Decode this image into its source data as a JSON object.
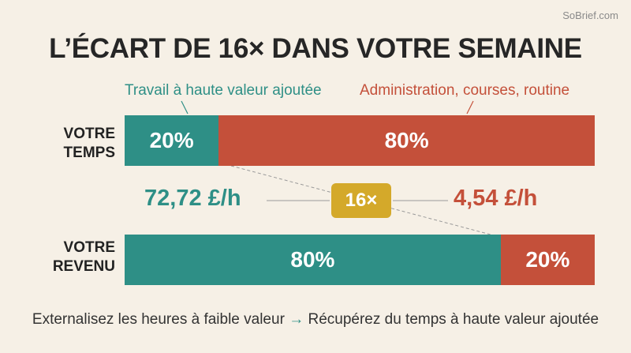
{
  "watermark": "SoBrief.com",
  "chart_data": {
    "type": "bar",
    "title": "L’ÉCART DE 16× DANS VOTRE SEMAINE",
    "legend": [
      {
        "label": "Travail à haute valeur ajoutée",
        "color": "#2e8f86"
      },
      {
        "label": "Administration, courses, routine",
        "color": "#c4503a"
      }
    ],
    "rows": [
      {
        "label_line1": "VOTRE",
        "label_line2": "TEMPS",
        "values": [
          20,
          80
        ],
        "value_labels": [
          "20%",
          "80%"
        ]
      },
      {
        "label_line1": "VOTRE",
        "label_line2": "REVENU",
        "values": [
          80,
          20
        ],
        "value_labels": [
          "80%",
          "20%"
        ]
      }
    ],
    "rates": {
      "high": "72,72 £/h",
      "low": "4,54 £/h"
    },
    "ratio_label": "16×"
  },
  "footer": {
    "left": "Externalisez les heures à faible valeur",
    "arrow": "→",
    "right": "Récupérez du temps à haute valeur ajoutée"
  },
  "colors": {
    "teal": "#2e8f86",
    "rust": "#c4503a",
    "gold": "#d4a92a",
    "background": "#f6f0e6"
  }
}
